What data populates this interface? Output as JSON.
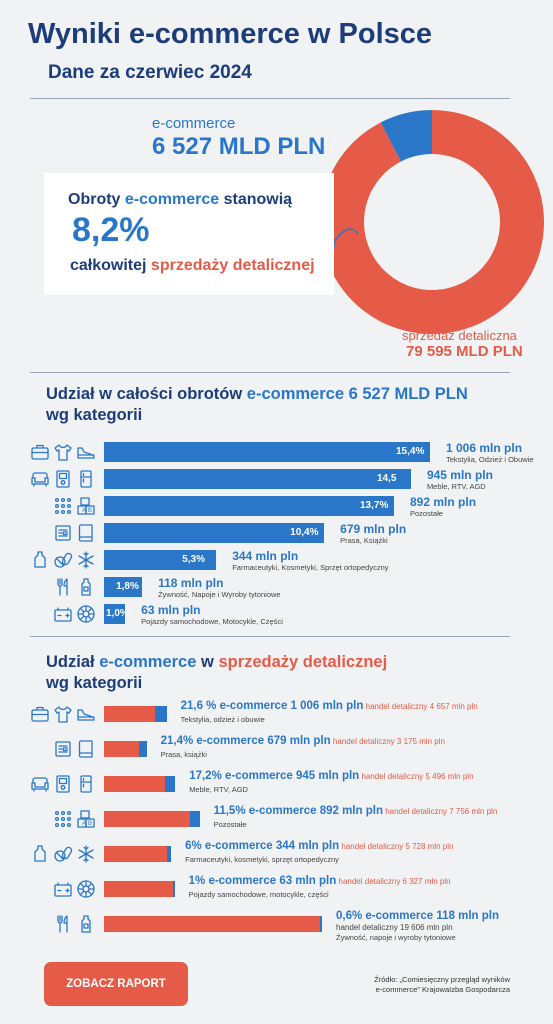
{
  "header": {
    "title": "Wyniki e-commerce w Polsce",
    "subtitle": "Dane za czerwiec 2024"
  },
  "donut": {
    "ecommerce_label": "e-commerce",
    "ecommerce_value": "6 527 MLD PLN",
    "retail_label": "sprzedaż detaliczna",
    "retail_value": "79 595 MLD PLN",
    "colors": {
      "ecommerce": "#2a77c9",
      "retail": "#e55b48"
    }
  },
  "card": {
    "line1_a": "Obroty ",
    "line1_b": "e-commerce",
    "line1_c": " stanowią",
    "percent": "8,2%",
    "line3_a": "całkowitej ",
    "line3_b": "sprzedaży detalicznej"
  },
  "section1": {
    "title_a": "Udział w całości obrotów ",
    "title_b": "e-commerce 6 527 MLD PLN",
    "title_c": "wg kategorii"
  },
  "section2": {
    "title_a": "Udział ",
    "title_b": "e-commerce",
    "title_c": " w ",
    "title_d": "sprzedaży detalicznej",
    "title_e": "wg kategorii"
  },
  "footer": {
    "button": "ZOBACZ RAPORT",
    "source_l1": "Źródło: „Comiesięczny przegląd wyników",
    "source_l2": "e-commerce\" KrajowaIzba Gospodarcza"
  },
  "chart_data": [
    {
      "type": "pie",
      "categories": [
        "e-commerce",
        "sprzedaż detaliczna"
      ],
      "values": [
        6527,
        79595
      ]
    },
    {
      "type": "bar",
      "orientation": "horizontal",
      "categories": [
        "Tekstylia, Odzież i Obuwie",
        "Meble, RTV, AGD",
        "Pozostałe",
        "Prasa, Książki",
        "Farmaceutyki, Kosmetyki, Sprzęt ortopedyczny",
        "Żywność, Napoje i Wyroby tytoniowe",
        "Pojazdy samochodowe, Motocykle, Części"
      ],
      "values": [
        15.4,
        14.5,
        13.7,
        10.4,
        5.3,
        1.8,
        1.0
      ],
      "value_labels": [
        "15,4%",
        "14,5",
        "13,7%",
        "10,4%",
        "5,3%",
        "1,8%",
        "1,0%"
      ],
      "amounts": [
        "1 006 mln pln",
        "945 mln pln",
        "892 mln pln",
        "679 mln pln",
        "344 mln pln",
        "118 mln pln",
        "63 mln pln"
      ],
      "icons": [
        [
          "suitcase-icon",
          "tshirt-icon",
          "shoe-icon"
        ],
        [
          "sofa-icon",
          "tv-icon",
          "fridge-icon"
        ],
        [
          "dots-icon",
          "toy-blocks-icon"
        ],
        [
          "newspaper-icon",
          "book-icon"
        ],
        [
          "bottle-icon",
          "pills-icon",
          "medical-cross-icon"
        ],
        [
          "cutlery-icon",
          "drink-bottle-icon"
        ],
        [
          "battery-icon",
          "wheel-icon"
        ]
      ],
      "color": "#2a77c9"
    },
    {
      "type": "bar",
      "orientation": "horizontal",
      "stacked": true,
      "categories": [
        "Tekstylia, odzież i obuwie",
        "Prasa, książki",
        "Meble, RTV, AGD",
        "Pozostałe",
        "Farmaceutyki, kosmetyki, sprzęt ortopedyczny",
        "Pojazdy samochodowe, motocykle, części",
        "Żywność, napoje i wyroby tytoniowe"
      ],
      "percent_labels": [
        "21,6 %",
        "21,4%",
        "17,2%",
        "11,5%",
        "6%",
        "1%",
        "0,6%"
      ],
      "series": [
        {
          "name": "e-commerce",
          "values": [
            1006,
            679,
            945,
            892,
            344,
            63,
            118
          ],
          "labels": [
            "1 006 mln pln",
            "679 mln pln",
            "945 mln pln",
            "892 mln pln",
            "344 mln pln",
            "63 mln pln",
            "118 mln pln"
          ],
          "color": "#2a77c9"
        },
        {
          "name": "handel detaliczny",
          "values": [
            4657,
            3175,
            5496,
            7756,
            5728,
            6327,
            19606
          ],
          "labels": [
            "4 657 mln pln",
            "3 175 mln pln",
            "5 496 mln pln",
            "7 756 mln pln",
            "5 728 mln pln",
            "6 327 mln pln",
            "19 606 mln pln"
          ],
          "color": "#e55b48"
        }
      ],
      "icons": [
        [
          "suitcase-icon",
          "tshirt-icon",
          "shoe-icon"
        ],
        [
          "newspaper-icon",
          "book-icon"
        ],
        [
          "sofa-icon",
          "tv-icon",
          "fridge-icon"
        ],
        [
          "dots-icon",
          "toy-blocks-icon"
        ],
        [
          "bottle-icon",
          "pills-icon",
          "medical-cross-icon"
        ],
        [
          "battery-icon",
          "wheel-icon"
        ],
        [
          "cutlery-icon",
          "drink-bottle-icon"
        ]
      ]
    }
  ]
}
